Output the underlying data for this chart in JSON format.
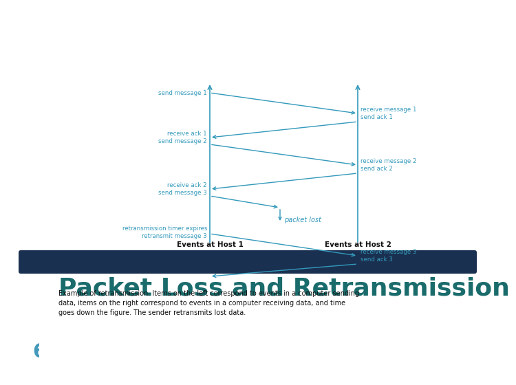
{
  "title": "Packet Loss and Retransmission",
  "title_color": "#1a6b6b",
  "title_fontsize": 26,
  "bg_color": "#ffffff",
  "left_bar_color": "#a8c8a0",
  "slide_number": "6",
  "slide_number_color": "#4499bb",
  "header_bar_color": "#1a3050",
  "diagram_line_color": "#3399bb",
  "diagram_text_color": "#3399bb",
  "caption_color": "#111111",
  "caption_text": "Example of retransmission. Items on the left correspond to events in a computer sending\ndata, items on the right correspond to events in a computer receiving data, and time\ngoes down the figure. The sender retransmits lost data.",
  "host1_label": "Events at Host 1",
  "host2_label": "Events at Host 2"
}
